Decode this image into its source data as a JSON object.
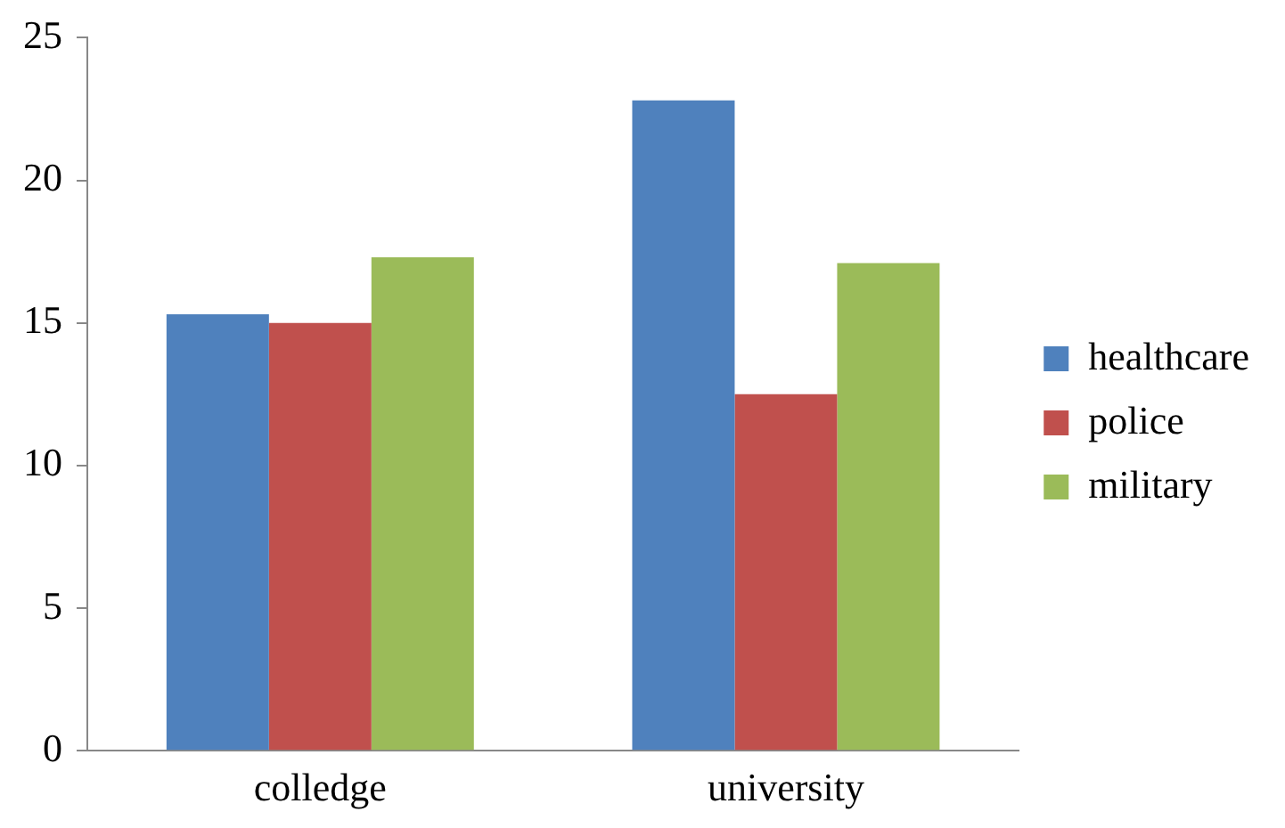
{
  "chart_data": {
    "type": "bar",
    "categories": [
      "colledge",
      "university"
    ],
    "series": [
      {
        "name": "healthcare",
        "color": "#4f81bd",
        "values": [
          15.3,
          22.8
        ]
      },
      {
        "name": "police",
        "color": "#c0504d",
        "values": [
          15.0,
          12.5
        ]
      },
      {
        "name": "military",
        "color": "#9bbb59",
        "values": [
          17.3,
          17.1
        ]
      }
    ],
    "ylim": [
      0,
      25
    ],
    "yticks": [
      0,
      5,
      10,
      15,
      20,
      25
    ],
    "grid": false,
    "legend": "right"
  }
}
